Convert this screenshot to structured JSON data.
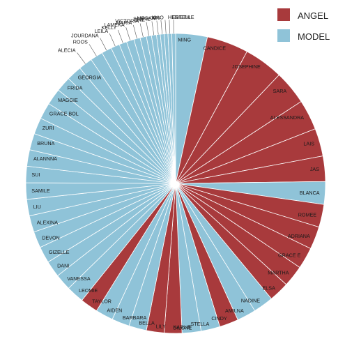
{
  "chart_data": {
    "type": "pie",
    "legend": [
      {
        "name": "ANGEL",
        "color": "#a83a3c"
      },
      {
        "name": "MODEL",
        "color": "#8fc3d8"
      }
    ],
    "legend_position": "top-right",
    "slices": [
      {
        "label": "MING",
        "value": 12.5,
        "group": "MODEL"
      },
      {
        "label": "CANDICE",
        "value": 16.5,
        "group": "ANGEL"
      },
      {
        "label": "JOSEPHINE",
        "value": 15.5,
        "group": "ANGEL"
      },
      {
        "label": "SARA",
        "value": 13.5,
        "group": "ANGEL"
      },
      {
        "label": "ALESSANDRA",
        "value": 12,
        "group": "ANGEL"
      },
      {
        "label": "LAIS",
        "value": 11,
        "group": "ANGEL"
      },
      {
        "label": "JAS",
        "value": 10,
        "group": "ANGEL"
      },
      {
        "label": "BLANCA",
        "value": 9,
        "group": "MODEL"
      },
      {
        "label": "ROMEE",
        "value": 9,
        "group": "ANGEL"
      },
      {
        "label": "ADRIANA",
        "value": 9,
        "group": "ANGEL"
      },
      {
        "label": "GRACE E",
        "value": 8.5,
        "group": "ANGEL"
      },
      {
        "label": "MARTHA",
        "value": 8.5,
        "group": "ANGEL"
      },
      {
        "label": "ELSA",
        "value": 8,
        "group": "ANGEL"
      },
      {
        "label": "NADINE",
        "value": 8,
        "group": "MODEL"
      },
      {
        "label": "AMILNA",
        "value": 7.5,
        "group": "MODEL"
      },
      {
        "label": "CINDY",
        "value": 7.5,
        "group": "ANGEL"
      },
      {
        "label": "STELLA",
        "value": 7.5,
        "group": "MODEL"
      },
      {
        "label": "KARLIE",
        "value": 7.5,
        "group": "MODEL"
      },
      {
        "label": "DILONE",
        "value": 7,
        "group": "ANGEL"
      },
      {
        "label": "LILY",
        "value": 7,
        "group": "ANGEL"
      },
      {
        "label": "BELLA",
        "value": 7,
        "group": "MODEL"
      },
      {
        "label": "BARBARA",
        "value": 7,
        "group": "MODEL"
      },
      {
        "label": "AIDEN",
        "value": 7,
        "group": "MODEL"
      },
      {
        "label": "TAYLOR",
        "value": 7,
        "group": "ANGEL"
      },
      {
        "label": "LEOMIE",
        "value": 7,
        "group": "MODEL"
      },
      {
        "label": "VANESSA",
        "value": 6.5,
        "group": "MODEL"
      },
      {
        "label": "DANI",
        "value": 6.5,
        "group": "MODEL"
      },
      {
        "label": "GIZELLE",
        "value": 6.5,
        "group": "MODEL"
      },
      {
        "label": "DEVON",
        "value": 6.5,
        "group": "MODEL"
      },
      {
        "label": "ALEXINA",
        "value": 6.5,
        "group": "MODEL"
      },
      {
        "label": "LIU",
        "value": 6.5,
        "group": "MODEL"
      },
      {
        "label": "SAMILE",
        "value": 6.5,
        "group": "MODEL"
      },
      {
        "label": "SUI",
        "value": 6.5,
        "group": "MODEL"
      },
      {
        "label": "ALANNNA",
        "value": 6.5,
        "group": "MODEL"
      },
      {
        "label": "BRUNA",
        "value": 6.5,
        "group": "MODEL"
      },
      {
        "label": "ZURI",
        "value": 6.5,
        "group": "MODEL"
      },
      {
        "label": "GRACE BOL",
        "value": 6.5,
        "group": "MODEL"
      },
      {
        "label": "MAGGIE",
        "value": 6.5,
        "group": "MODEL"
      },
      {
        "label": "FRIDA",
        "value": 6,
        "group": "MODEL"
      },
      {
        "label": "GEORGIA",
        "value": 6,
        "group": "MODEL"
      },
      {
        "label": "ALECIA",
        "value": 5.5,
        "group": "MODEL"
      },
      {
        "label": "ROOS",
        "value": 5,
        "group": "MODEL"
      },
      {
        "label": "JOURDANA",
        "value": 4,
        "group": "MODEL"
      },
      {
        "label": "LEILA",
        "value": 3.5,
        "group": "MODEL"
      },
      {
        "label": "KELLY",
        "value": 3,
        "group": "MODEL"
      },
      {
        "label": "LAMEKA",
        "value": 3,
        "group": "MODEL"
      },
      {
        "label": "MARIA",
        "value": 2.5,
        "group": "MODEL"
      },
      {
        "label": "VICTORIA",
        "value": 2.5,
        "group": "MODEL"
      },
      {
        "label": "ONE",
        "value": 2,
        "group": "MODEL"
      },
      {
        "label": "SANNE",
        "value": 2,
        "group": "MODEL"
      },
      {
        "label": "MEGAN",
        "value": 1.5,
        "group": "MODEL"
      },
      {
        "label": "XIN",
        "value": 1.5,
        "group": "MODEL"
      },
      {
        "label": "XIAO",
        "value": 1.5,
        "group": "MODEL"
      },
      {
        "label": "HERIETH",
        "value": 1.5,
        "group": "MODEL"
      },
      {
        "label": "ESTELLE",
        "value": 1.5,
        "group": "MODEL"
      }
    ]
  }
}
